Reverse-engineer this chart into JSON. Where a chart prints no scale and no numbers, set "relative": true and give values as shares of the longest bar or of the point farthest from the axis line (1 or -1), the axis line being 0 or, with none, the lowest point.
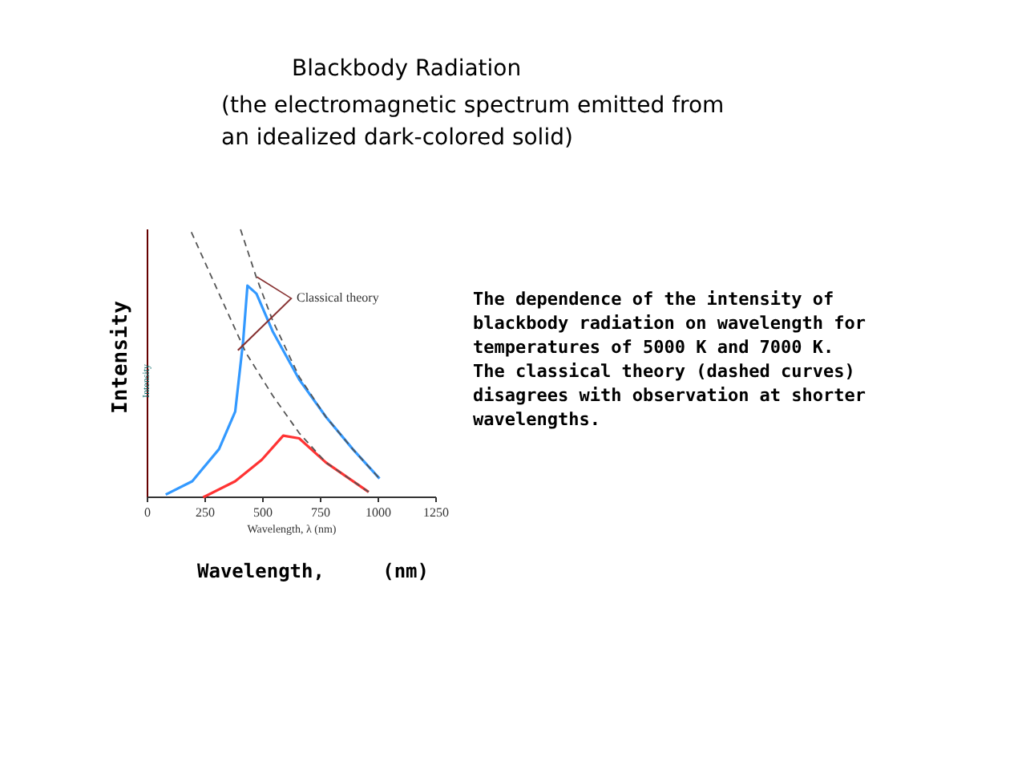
{
  "chart_data": {
    "type": "line",
    "title": "Blackbody Radiation",
    "subtitle": "(the electromagnetic spectrum emitted from an idealized dark-colored solid)",
    "xlabel": "Wavelength, λ (nm)",
    "ylabel": "Intensity",
    "relative": true,
    "xlim": [
      0,
      1250
    ],
    "xticks": [
      0,
      250,
      500,
      750,
      1000,
      1250
    ],
    "grid": false,
    "series": [
      {
        "color": "#3399ff",
        "line_style": "solid",
        "x": [
          79,
          194,
          310,
          380,
          414,
          433,
          472,
          542,
          657,
          773,
          889,
          1005
        ],
        "values": [
          0.01,
          0.06,
          0.18,
          0.32,
          0.58,
          0.79,
          0.76,
          0.62,
          0.44,
          0.3,
          0.18,
          0.07
        ]
      },
      {
        "color": "#ff3333",
        "line_style": "solid",
        "x": [
          241,
          380,
          495,
          588,
          657,
          773,
          958
        ],
        "values": [
          0,
          0.06,
          0.14,
          0.23,
          0.22,
          0.13,
          0.02
        ]
      },
      {
        "color": "#555555",
        "line_style": "dashed",
        "x": [
          403,
          472,
          542,
          657,
          773,
          889,
          1005
        ],
        "values": [
          1,
          0.82,
          0.66,
          0.45,
          0.3,
          0.18,
          0.07
        ]
      },
      {
        "color": "#555555",
        "line_style": "dashed",
        "x": [
          190,
          310,
          426,
          542,
          657,
          773,
          958
        ],
        "values": [
          0.99,
          0.76,
          0.54,
          0.38,
          0.24,
          0.13,
          0.02
        ]
      }
    ],
    "annotations": [
      "Classical theory",
      "Intensity",
      "Wavelength,     (nm)",
      "The dependence of the intensity of blackbody radiation on wavelength for temperatures of 5000 K and 7000 K. The classical theory (dashed curves) disagrees with observation at shorter wavelengths."
    ]
  }
}
